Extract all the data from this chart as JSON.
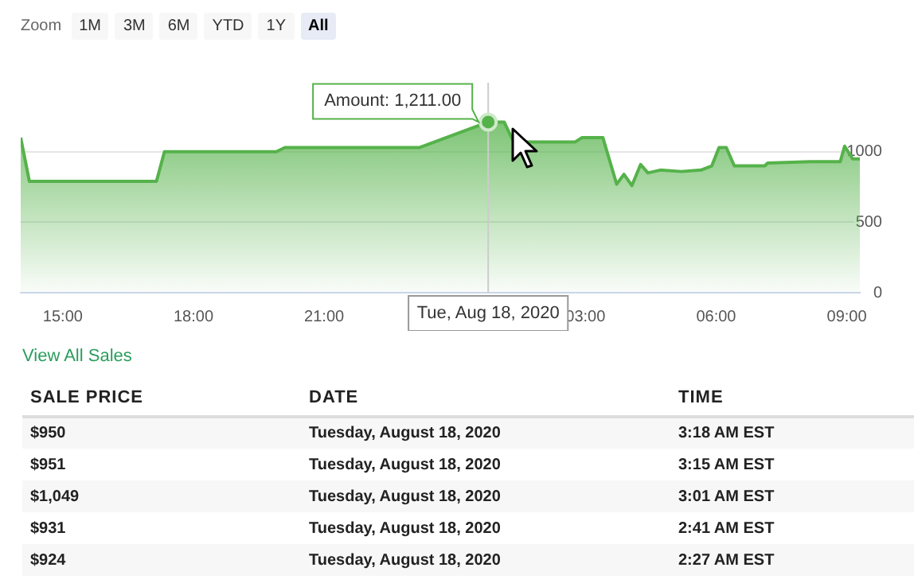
{
  "chart_data": {
    "type": "area",
    "x": [
      "2020-08-17T14:02",
      "2020-08-17T14:14",
      "2020-08-17T17:09",
      "2020-08-17T17:20",
      "2020-08-17T19:54",
      "2020-08-17T20:06",
      "2020-08-17T23:11",
      "2020-08-18T00:46",
      "2020-08-18T01:08",
      "2020-08-18T01:21",
      "2020-08-18T02:46",
      "2020-08-18T02:55",
      "2020-08-18T03:24",
      "2020-08-18T03:43",
      "2020-08-18T03:53",
      "2020-08-18T04:04",
      "2020-08-18T04:16",
      "2020-08-18T04:26",
      "2020-08-18T04:43",
      "2020-08-18T05:12",
      "2020-08-18T05:39",
      "2020-08-18T05:54",
      "2020-08-18T06:04",
      "2020-08-18T06:14",
      "2020-08-18T06:25",
      "2020-08-18T07:07",
      "2020-08-18T07:11",
      "2020-08-18T08:09",
      "2020-08-18T08:51",
      "2020-08-18T08:57",
      "2020-08-18T09:08",
      "2020-08-18T09:18"
    ],
    "series": [
      {
        "color": "#55b24a",
        "values": [
          1100,
          790,
          790,
          1000,
          1000,
          1030,
          1030,
          1211,
          1211,
          1070,
          1070,
          1100,
          1100,
          770,
          840,
          760,
          910,
          850,
          870,
          860,
          870,
          900,
          1030,
          1030,
          900,
          900,
          920,
          930,
          930,
          1040,
          950,
          950
        ]
      }
    ],
    "xlim": [
      "2020-08-17T14:02",
      "2020-08-18T09:18"
    ],
    "xticks": [
      {
        "value": "2020-08-17T15:00",
        "label": "15:00"
      },
      {
        "value": "2020-08-17T18:00",
        "label": "18:00"
      },
      {
        "value": "2020-08-17T21:00",
        "label": "21:00"
      },
      {
        "value": "2020-08-18T03:00",
        "label": "03:00"
      },
      {
        "value": "2020-08-18T06:00",
        "label": "06:00"
      },
      {
        "value": "2020-08-18T09:00",
        "label": "09:00"
      }
    ],
    "ylim": [
      0,
      1490
    ],
    "yticks": [
      0,
      500,
      1000
    ],
    "grid": "y",
    "legend": false,
    "ref_lines": [
      {
        "axis": "x",
        "value": "2020-08-18T00:46",
        "label": "Tue, Aug 18, 2020",
        "color": "#cccccc"
      }
    ],
    "annotations": [
      {
        "text": "Amount: 1,211.00",
        "x": "2020-08-18T00:46",
        "y": 1211
      },
      "Zoom",
      "1M",
      "3M",
      "6M",
      "YTD",
      "1Y",
      "All",
      "View All Sales",
      "SALE PRICE",
      "DATE",
      "TIME",
      "$950",
      "Tuesday, August 18, 2020",
      "3:18 AM EST",
      "$951",
      "Tuesday, August 18, 2020",
      "3:15 AM EST",
      "$1,049",
      "Tuesday, August 18, 2020",
      "3:01 AM EST",
      "$931",
      "Tuesday, August 18, 2020",
      "2:41 AM EST",
      "$924",
      "Tuesday, August 18, 2020",
      "2:27 AM EST"
    ]
  }
}
